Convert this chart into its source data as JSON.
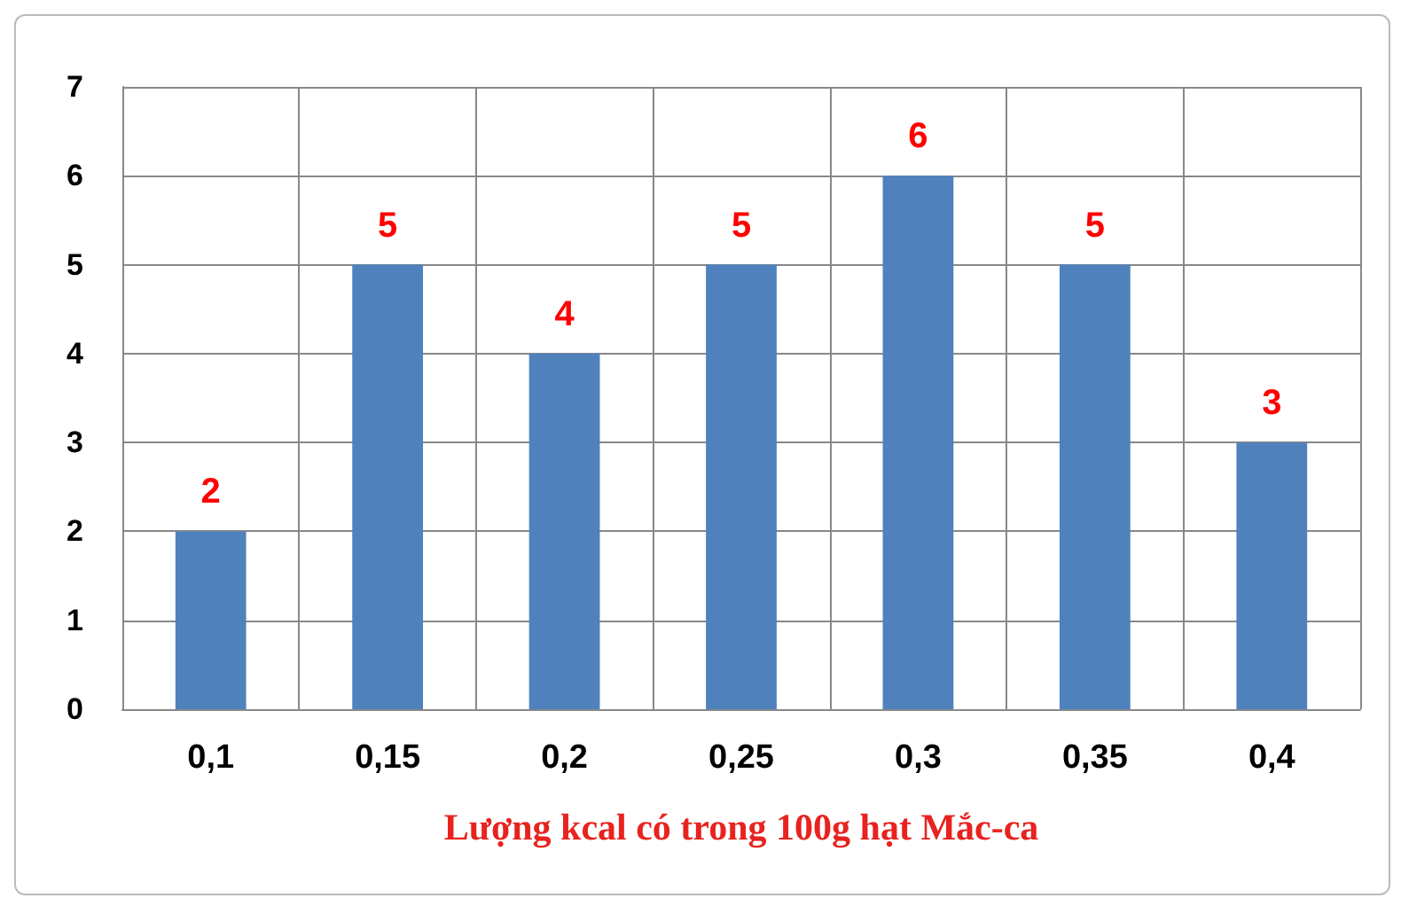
{
  "chart_data": {
    "type": "bar",
    "xlabel": "Lượng kcal có trong 100g hạt Mắc-ca",
    "categories": [
      "0,1",
      "0,15",
      "0,2",
      "0,25",
      "0,3",
      "0,35",
      "0,4"
    ],
    "values": [
      2,
      5,
      4,
      5,
      6,
      5,
      3
    ],
    "color": "#4f81bd",
    "ylim": [
      0,
      7
    ],
    "yticks": [
      0,
      1,
      2,
      3,
      4,
      5,
      6,
      7
    ],
    "grid": true,
    "data_labels": true
  }
}
